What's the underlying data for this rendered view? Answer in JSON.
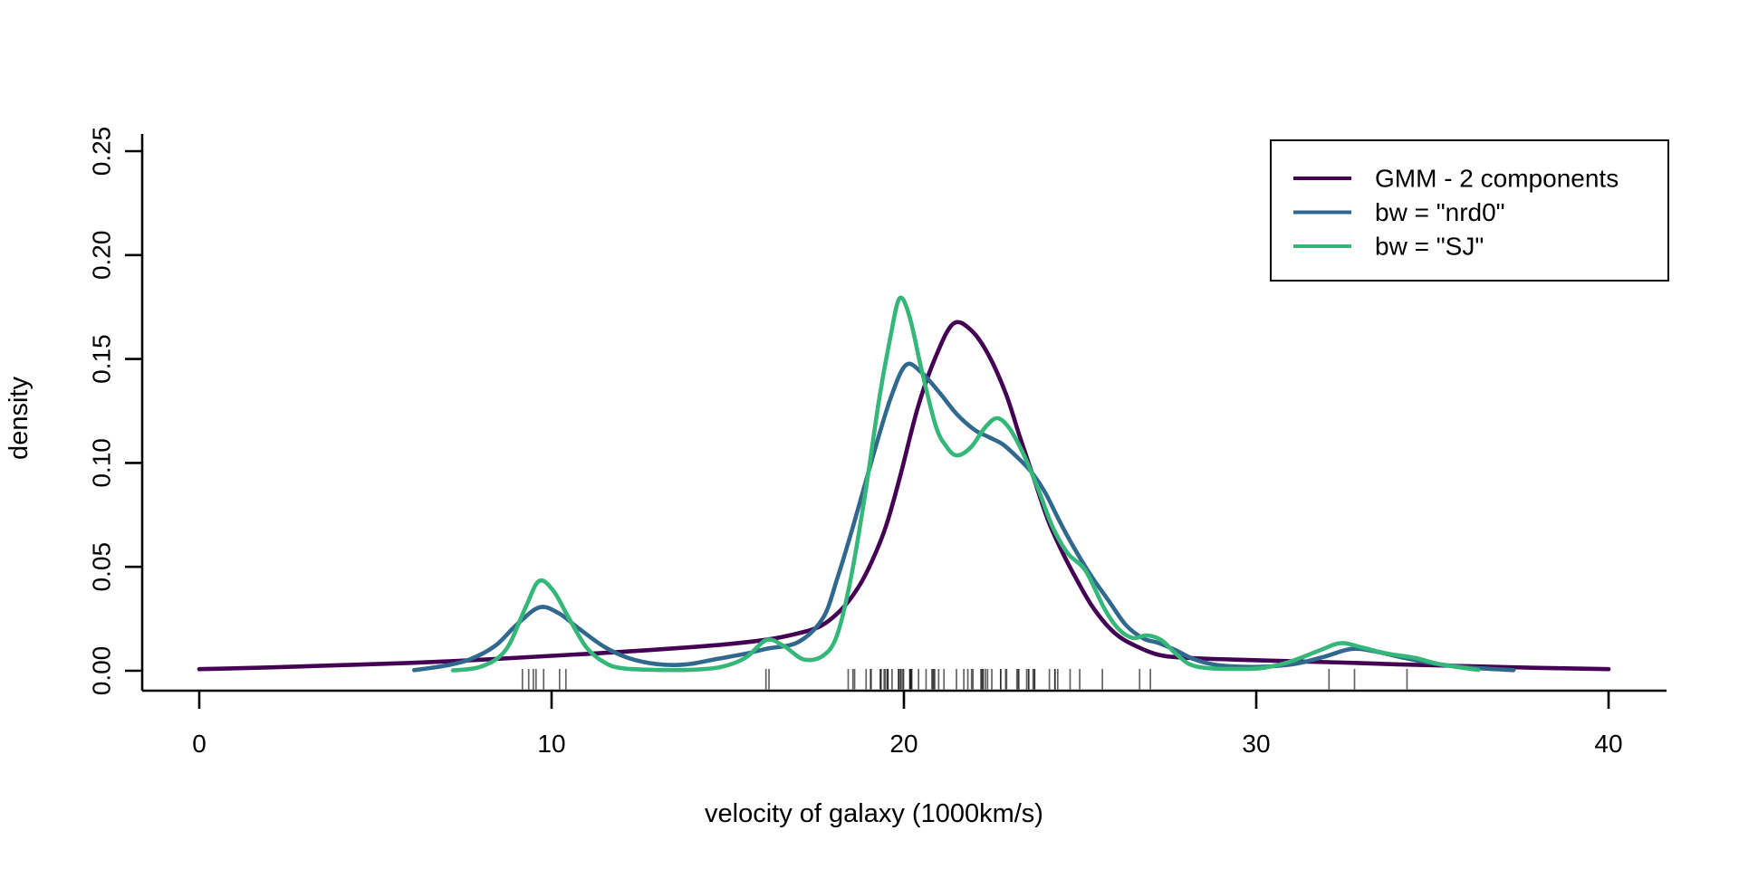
{
  "chart_data": {
    "type": "line",
    "title": "",
    "xlabel": "velocity of galaxy (1000km/s)",
    "ylabel": "density",
    "xlim": [
      0,
      40
    ],
    "ylim": [
      0,
      0.25
    ],
    "grid": false,
    "x_ticks": {
      "values": [
        0,
        10,
        20,
        30,
        40
      ],
      "labels": [
        "0",
        "10",
        "20",
        "30",
        "40"
      ]
    },
    "y_ticks": {
      "values": [
        0,
        0.05,
        0.1,
        0.15,
        0.2,
        0.25
      ],
      "labels": [
        "0.00",
        "0.05",
        "0.10",
        "0.15",
        "0.20",
        "0.25"
      ]
    },
    "legend": {
      "position": "top-right",
      "entries": [
        {
          "label": "GMM - 2 components",
          "color": "#440154"
        },
        {
          "label": "bw = \"nrd0\"",
          "color": "#31688E"
        },
        {
          "label": "bw = \"SJ\"",
          "color": "#35B779"
        }
      ]
    },
    "series": [
      {
        "name": "GMM - 2 components",
        "color": "#440154",
        "points": [
          [
            0,
            0.0008
          ],
          [
            2,
            0.0016
          ],
          [
            4,
            0.0027
          ],
          [
            6,
            0.0038
          ],
          [
            8,
            0.0053
          ],
          [
            10,
            0.0072
          ],
          [
            12,
            0.0091
          ],
          [
            14,
            0.0114
          ],
          [
            15,
            0.0128
          ],
          [
            16,
            0.0147
          ],
          [
            16.8,
            0.0172
          ],
          [
            17.6,
            0.0212
          ],
          [
            18.2,
            0.029
          ],
          [
            18.7,
            0.04
          ],
          [
            19.1,
            0.053
          ],
          [
            19.5,
            0.07
          ],
          [
            19.9,
            0.094
          ],
          [
            20.4,
            0.127
          ],
          [
            20.9,
            0.151
          ],
          [
            21.4,
            0.167
          ],
          [
            21.9,
            0.164
          ],
          [
            22.4,
            0.152
          ],
          [
            22.9,
            0.133
          ],
          [
            23.3,
            0.112
          ],
          [
            23.7,
            0.092
          ],
          [
            24.1,
            0.072
          ],
          [
            24.5,
            0.057
          ],
          [
            24.9,
            0.044
          ],
          [
            25.4,
            0.0296
          ],
          [
            26,
            0.0179
          ],
          [
            26.6,
            0.0118
          ],
          [
            27.3,
            0.0074
          ],
          [
            28.2,
            0.0061
          ],
          [
            29.5,
            0.0053
          ],
          [
            31,
            0.0046
          ],
          [
            32.5,
            0.0039
          ],
          [
            34,
            0.0031
          ],
          [
            36,
            0.0022
          ],
          [
            38,
            0.0014
          ],
          [
            40,
            0.0008
          ]
        ]
      },
      {
        "name": "bw = \"nrd0\"",
        "color": "#31688E",
        "points": [
          [
            6.1,
            0.0003
          ],
          [
            7,
            0.0025
          ],
          [
            7.7,
            0.0056
          ],
          [
            8.4,
            0.012
          ],
          [
            9,
            0.022
          ],
          [
            9.65,
            0.0305
          ],
          [
            10.2,
            0.0277
          ],
          [
            10.8,
            0.02
          ],
          [
            11.5,
            0.0115
          ],
          [
            12.2,
            0.006
          ],
          [
            13,
            0.0032
          ],
          [
            13.8,
            0.003
          ],
          [
            14.7,
            0.0057
          ],
          [
            15.5,
            0.0082
          ],
          [
            16.1,
            0.0106
          ],
          [
            17,
            0.0138
          ],
          [
            17.7,
            0.0253
          ],
          [
            18.1,
            0.044
          ],
          [
            18.6,
            0.072
          ],
          [
            19.1,
            0.102
          ],
          [
            19.6,
            0.13
          ],
          [
            20.05,
            0.147
          ],
          [
            20.5,
            0.1435
          ],
          [
            21,
            0.134
          ],
          [
            21.5,
            0.1235
          ],
          [
            22,
            0.116
          ],
          [
            22.4,
            0.1125
          ],
          [
            22.8,
            0.109
          ],
          [
            23.2,
            0.103
          ],
          [
            23.6,
            0.096
          ],
          [
            24,
            0.086
          ],
          [
            24.4,
            0.0725
          ],
          [
            24.8,
            0.06
          ],
          [
            25.3,
            0.046
          ],
          [
            25.8,
            0.034
          ],
          [
            26.3,
            0.022
          ],
          [
            26.8,
            0.0155
          ],
          [
            27.2,
            0.0135
          ],
          [
            27.7,
            0.01
          ],
          [
            28.2,
            0.0058
          ],
          [
            28.8,
            0.003
          ],
          [
            29.5,
            0.002
          ],
          [
            30.3,
            0.002
          ],
          [
            31.1,
            0.0033
          ],
          [
            31.9,
            0.0066
          ],
          [
            32.7,
            0.0105
          ],
          [
            33.4,
            0.0092
          ],
          [
            34.2,
            0.0062
          ],
          [
            35,
            0.0036
          ],
          [
            36,
            0.0016
          ],
          [
            37.3,
            0.0003
          ]
        ]
      },
      {
        "name": "bw = \"SJ\"",
        "color": "#35B779",
        "points": [
          [
            7.2,
            0.0002
          ],
          [
            8,
            0.002
          ],
          [
            8.7,
            0.01
          ],
          [
            9.25,
            0.03
          ],
          [
            9.64,
            0.0431
          ],
          [
            10.05,
            0.0385
          ],
          [
            10.5,
            0.025
          ],
          [
            11,
            0.011
          ],
          [
            11.5,
            0.004
          ],
          [
            12,
            0.0012
          ],
          [
            13,
            0.0004
          ],
          [
            14,
            0.0005
          ],
          [
            14.8,
            0.0018
          ],
          [
            15.5,
            0.0062
          ],
          [
            16.1,
            0.0148
          ],
          [
            16.6,
            0.0118
          ],
          [
            17.15,
            0.0055
          ],
          [
            17.7,
            0.0072
          ],
          [
            18.1,
            0.017
          ],
          [
            18.5,
            0.045
          ],
          [
            18.9,
            0.085
          ],
          [
            19.3,
            0.131
          ],
          [
            19.6,
            0.159
          ],
          [
            19.87,
            0.179
          ],
          [
            20.15,
            0.171
          ],
          [
            20.5,
            0.145
          ],
          [
            20.9,
            0.118
          ],
          [
            21.2,
            0.108
          ],
          [
            21.5,
            0.1036
          ],
          [
            21.9,
            0.1075
          ],
          [
            22.3,
            0.117
          ],
          [
            22.65,
            0.1215
          ],
          [
            23,
            0.1165
          ],
          [
            23.4,
            0.104
          ],
          [
            23.8,
            0.088
          ],
          [
            24.2,
            0.07
          ],
          [
            24.65,
            0.0565
          ],
          [
            25.15,
            0.0483
          ],
          [
            25.7,
            0.0296
          ],
          [
            26.1,
            0.02
          ],
          [
            26.5,
            0.0158
          ],
          [
            26.9,
            0.017
          ],
          [
            27.3,
            0.0148
          ],
          [
            27.7,
            0.0085
          ],
          [
            28.1,
            0.0032
          ],
          [
            28.6,
            0.0013
          ],
          [
            29.4,
            0.0009
          ],
          [
            30.2,
            0.0014
          ],
          [
            31,
            0.0046
          ],
          [
            31.8,
            0.0098
          ],
          [
            32.4,
            0.0133
          ],
          [
            33,
            0.0112
          ],
          [
            33.7,
            0.0083
          ],
          [
            34.5,
            0.0062
          ],
          [
            35.2,
            0.0032
          ],
          [
            36.3,
            0.0004
          ]
        ]
      }
    ],
    "rug": [
      9.172,
      9.35,
      9.483,
      9.558,
      9.775,
      10.227,
      10.406,
      16.084,
      16.17,
      18.419,
      18.552,
      18.6,
      18.927,
      19.052,
      19.07,
      19.33,
      19.343,
      19.349,
      19.44,
      19.473,
      19.529,
      19.541,
      19.547,
      19.663,
      19.846,
      19.856,
      19.863,
      19.914,
      19.918,
      19.973,
      19.989,
      20.166,
      20.175,
      20.179,
      20.196,
      20.215,
      20.221,
      20.415,
      20.629,
      20.795,
      20.821,
      20.846,
      20.875,
      20.986,
      21.137,
      21.492,
      21.701,
      21.814,
      21.921,
      21.96,
      22.185,
      22.209,
      22.242,
      22.249,
      22.314,
      22.374,
      22.495,
      22.746,
      22.747,
      22.888,
      22.914,
      23.206,
      23.241,
      23.263,
      23.484,
      23.538,
      23.542,
      23.666,
      23.706,
      23.711,
      24.129,
      24.285,
      24.289,
      24.366,
      24.717,
      24.99,
      25.633,
      26.69,
      26.995,
      32.065,
      32.789,
      34.279
    ]
  }
}
